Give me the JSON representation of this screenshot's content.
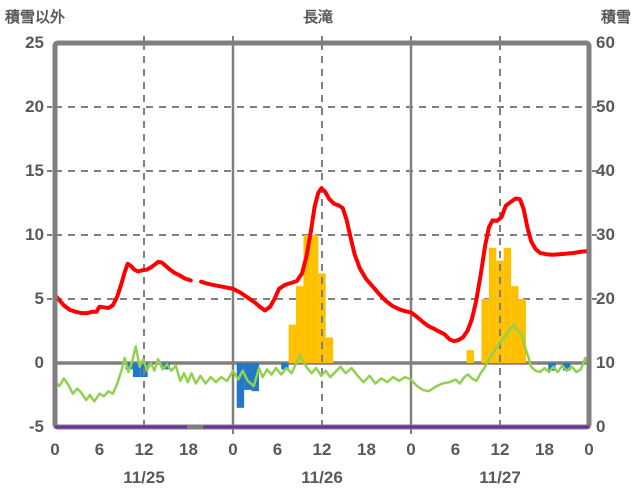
{
  "header": {
    "left_axis_title": "積雪以外",
    "title": "長滝",
    "right_axis_title": "積雪"
  },
  "colors": {
    "axis_text": "#595959",
    "grid": "#808080",
    "border": "#7F7F7F",
    "red": "#FF0000",
    "green": "#92D050",
    "orange": "#FFC000",
    "blue": "#1F78C8",
    "purple": "#7030A0"
  },
  "chart_data": {
    "type": "combo",
    "title": "長滝",
    "left_axis": {
      "label": "積雪以外",
      "min": -5,
      "max": 25,
      "ticks": [
        25,
        20,
        15,
        10,
        5,
        0,
        -5
      ]
    },
    "right_axis": {
      "label": "積雪",
      "min": 0,
      "max": 60,
      "ticks": [
        60,
        50,
        40,
        30,
        20,
        10,
        0
      ]
    },
    "x_axis": {
      "total_hours": 72,
      "tick_hours": [
        0,
        6,
        12,
        18,
        24,
        30,
        36,
        42,
        48,
        54,
        60,
        66,
        72
      ],
      "tick_labels": [
        "0",
        "6",
        "12",
        "18",
        "0",
        "6",
        "12",
        "18",
        "0",
        "6",
        "12",
        "18",
        "0"
      ],
      "day_labels": [
        {
          "label": "11/25",
          "center_hour": 12
        },
        {
          "label": "11/26",
          "center_hour": 36
        },
        {
          "label": "11/27",
          "center_hour": 60
        }
      ],
      "solid_vertical_hours": [
        24,
        48
      ],
      "dashed_vertical_hours": [
        12,
        36,
        60
      ]
    },
    "grid": {
      "dashed_left_values": [
        20,
        15,
        10,
        5
      ],
      "zero_line_left_value": 0
    },
    "series": [
      {
        "name": "orange-bars",
        "type": "bar",
        "axis": "left",
        "color": "#FFC000",
        "bar_width_hours": 1,
        "points": [
          [
            32,
            3
          ],
          [
            33,
            6
          ],
          [
            34,
            10
          ],
          [
            35,
            10
          ],
          [
            36,
            7
          ],
          [
            37,
            2
          ],
          [
            56,
            1
          ],
          [
            58,
            5
          ],
          [
            59,
            9
          ],
          [
            60,
            8
          ],
          [
            61,
            9
          ],
          [
            62,
            6
          ],
          [
            63,
            5
          ]
        ]
      },
      {
        "name": "blue-bars",
        "type": "bar",
        "axis": "left",
        "color": "#1F78C8",
        "bar_width_hours": 1,
        "points": [
          [
            10,
            -0.5
          ],
          [
            11,
            -1.1
          ],
          [
            12,
            -1.1
          ],
          [
            15,
            -0.5
          ],
          [
            25,
            -3.5
          ],
          [
            26,
            -2.1
          ],
          [
            27,
            -2.2
          ],
          [
            31,
            -0.5
          ],
          [
            67,
            -0.6
          ],
          [
            69,
            -0.6
          ]
        ]
      },
      {
        "name": "purple-line",
        "type": "line",
        "axis": "right",
        "color": "#7030A0",
        "width": 3,
        "segments": [
          [
            [
              0,
              0
            ],
            [
              17.8,
              0
            ]
          ],
          [
            [
              20,
              0
            ],
            [
              72,
              0
            ]
          ]
        ]
      },
      {
        "name": "green-line",
        "type": "line",
        "axis": "left",
        "color": "#92D050",
        "width": 2.5,
        "segments": [
          [
            [
              0,
              -1.5
            ],
            [
              0.6,
              -1.8
            ],
            [
              1.2,
              -1.2
            ],
            [
              1.8,
              -1.7
            ],
            [
              2.4,
              -2.4
            ],
            [
              3,
              -2.0
            ],
            [
              3.5,
              -2.3
            ],
            [
              4.2,
              -2.9
            ],
            [
              4.7,
              -2.5
            ],
            [
              5.3,
              -3.0
            ],
            [
              6,
              -2.4
            ],
            [
              6.6,
              -2.6
            ],
            [
              7.2,
              -2.2
            ],
            [
              7.8,
              -2.4
            ],
            [
              8.4,
              -1.6
            ],
            [
              9,
              -0.5
            ],
            [
              9.4,
              0.4
            ],
            [
              9.9,
              -0.7
            ],
            [
              10.4,
              0.1
            ],
            [
              10.9,
              1.3
            ],
            [
              11.4,
              -0.3
            ],
            [
              11.9,
              0.3
            ],
            [
              12.4,
              -0.6
            ],
            [
              12.9,
              0.0
            ],
            [
              13.4,
              -0.6
            ],
            [
              13.9,
              0.3
            ],
            [
              14.5,
              -0.5
            ],
            [
              15.1,
              -0.1
            ],
            [
              15.7,
              -0.6
            ],
            [
              16.3,
              -0.2
            ],
            [
              16.9,
              -1.4
            ],
            [
              17.4,
              -0.8
            ],
            [
              17.9,
              -1.5
            ],
            [
              18.4,
              -0.8
            ],
            [
              19,
              -1.6
            ],
            [
              19.6,
              -1.0
            ],
            [
              20.3,
              -1.6
            ],
            [
              21,
              -1.1
            ],
            [
              21.7,
              -1.5
            ],
            [
              22.4,
              -1.1
            ],
            [
              23.2,
              -1.4
            ],
            [
              24,
              -0.6
            ],
            [
              24.7,
              -1.3
            ],
            [
              25.3,
              -0.6
            ],
            [
              26,
              -1.4
            ],
            [
              26.8,
              -1.8
            ],
            [
              27.5,
              -0.4
            ],
            [
              28,
              -1.1
            ],
            [
              28.6,
              -0.5
            ],
            [
              29.2,
              -0.9
            ],
            [
              29.8,
              -0.4
            ],
            [
              30.5,
              -0.9
            ],
            [
              31.2,
              -0.4
            ],
            [
              31.9,
              -0.8
            ],
            [
              32.7,
              0.2
            ],
            [
              33,
              0.6
            ],
            [
              33.5,
              0.1
            ],
            [
              34,
              -0.4
            ],
            [
              34.6,
              -0.8
            ],
            [
              35.2,
              -0.4
            ],
            [
              35.9,
              -1.0
            ],
            [
              36.5,
              -0.6
            ],
            [
              37.1,
              -1.1
            ],
            [
              37.8,
              -0.7
            ],
            [
              38.5,
              -0.3
            ],
            [
              39.2,
              -0.8
            ],
            [
              40,
              -0.4
            ],
            [
              40.8,
              -1.0
            ],
            [
              41.6,
              -1.5
            ],
            [
              42.4,
              -1.0
            ],
            [
              43.2,
              -1.6
            ],
            [
              44,
              -1.2
            ],
            [
              44.8,
              -1.5
            ],
            [
              45.6,
              -1.1
            ],
            [
              46.4,
              -1.4
            ],
            [
              47.2,
              -1.1
            ],
            [
              48,
              -1.3
            ],
            [
              48.8,
              -1.8
            ],
            [
              49.6,
              -2.1
            ],
            [
              50.4,
              -2.2
            ],
            [
              51.2,
              -1.9
            ],
            [
              52.2,
              -1.6
            ],
            [
              53.2,
              -1.5
            ],
            [
              54,
              -1.3
            ],
            [
              54.6,
              -1.6
            ],
            [
              55.2,
              -1.1
            ],
            [
              55.7,
              -0.9
            ],
            [
              56.2,
              -1.2
            ],
            [
              56.8,
              -1.4
            ],
            [
              57.4,
              -0.8
            ],
            [
              58,
              -0.3
            ],
            [
              58.6,
              0.4
            ],
            [
              59.3,
              1.0
            ],
            [
              60,
              1.6
            ],
            [
              60.7,
              2.1
            ],
            [
              61.3,
              2.6
            ],
            [
              61.9,
              3.0
            ],
            [
              62.4,
              2.5
            ],
            [
              62.9,
              2.3
            ],
            [
              63.4,
              1.2
            ],
            [
              63.8,
              0.5
            ],
            [
              64.2,
              -0.3
            ],
            [
              64.8,
              -0.6
            ],
            [
              65.4,
              -0.7
            ],
            [
              66,
              -0.4
            ],
            [
              66.6,
              -0.7
            ],
            [
              67.2,
              -0.3
            ],
            [
              67.8,
              -0.7
            ],
            [
              68.4,
              -0.2
            ],
            [
              69,
              -0.6
            ],
            [
              69.7,
              -0.3
            ],
            [
              70.3,
              -0.7
            ],
            [
              70.9,
              -0.5
            ],
            [
              71.5,
              0.4
            ],
            [
              72,
              -0.4
            ]
          ]
        ]
      },
      {
        "name": "red-line",
        "type": "line",
        "axis": "left",
        "color": "#FF0000",
        "width": 4,
        "segments": [
          [
            [
              0,
              5.3
            ],
            [
              0.6,
              4.9
            ],
            [
              1.2,
              4.5
            ],
            [
              2,
              4.15
            ],
            [
              2.8,
              4.0
            ],
            [
              3.6,
              3.9
            ],
            [
              4.4,
              3.9
            ],
            [
              5,
              4.0
            ],
            [
              5.6,
              4.0
            ],
            [
              6,
              4.4
            ],
            [
              6.6,
              4.35
            ],
            [
              7.2,
              4.3
            ],
            [
              7.8,
              4.5
            ],
            [
              8.4,
              5.2
            ],
            [
              9,
              6.3
            ],
            [
              9.4,
              7.1
            ],
            [
              9.8,
              7.75
            ],
            [
              10.2,
              7.6
            ],
            [
              10.7,
              7.3
            ],
            [
              11.2,
              7.15
            ],
            [
              11.8,
              7.25
            ],
            [
              12.4,
              7.3
            ],
            [
              13,
              7.5
            ],
            [
              13.5,
              7.7
            ],
            [
              13.9,
              7.9
            ],
            [
              14.4,
              7.85
            ],
            [
              14.9,
              7.6
            ],
            [
              15.5,
              7.3
            ],
            [
              16.1,
              7.05
            ],
            [
              16.8,
              6.85
            ],
            [
              17.5,
              6.6
            ],
            [
              18.3,
              6.45
            ]
          ],
          [
            [
              19.7,
              6.35
            ],
            [
              20.5,
              6.2
            ],
            [
              21.3,
              6.1
            ],
            [
              22.2,
              6.0
            ],
            [
              23.1,
              5.9
            ],
            [
              24,
              5.8
            ],
            [
              25,
              5.5
            ],
            [
              26,
              5.1
            ],
            [
              27,
              4.7
            ],
            [
              27.7,
              4.35
            ],
            [
              28.3,
              4.1
            ],
            [
              29,
              4.4
            ],
            [
              29.6,
              5.0
            ],
            [
              30.2,
              5.8
            ],
            [
              31,
              6.1
            ],
            [
              31.8,
              6.25
            ],
            [
              32.6,
              6.4
            ],
            [
              33.3,
              7.0
            ],
            [
              33.9,
              8.3
            ],
            [
              34.5,
              10.3
            ],
            [
              35,
              12.2
            ],
            [
              35.5,
              13.3
            ],
            [
              35.9,
              13.65
            ],
            [
              36.4,
              13.4
            ],
            [
              37,
              12.8
            ],
            [
              37.6,
              12.45
            ],
            [
              38.3,
              12.3
            ],
            [
              38.8,
              12.1
            ],
            [
              39.3,
              11.2
            ],
            [
              39.9,
              9.7
            ],
            [
              40.4,
              8.5
            ],
            [
              41.1,
              7.4
            ],
            [
              41.9,
              6.6
            ],
            [
              42.8,
              6.0
            ],
            [
              43.7,
              5.4
            ],
            [
              44.6,
              4.85
            ],
            [
              45.5,
              4.45
            ],
            [
              46.4,
              4.2
            ],
            [
              47.2,
              4.05
            ],
            [
              48,
              3.95
            ],
            [
              48.8,
              3.6
            ],
            [
              49.6,
              3.2
            ],
            [
              50.3,
              2.9
            ],
            [
              51,
              2.7
            ],
            [
              51.8,
              2.45
            ],
            [
              52.5,
              2.25
            ],
            [
              53.2,
              1.85
            ],
            [
              53.8,
              1.7
            ],
            [
              54.4,
              1.8
            ],
            [
              55,
              2.0
            ],
            [
              55.6,
              2.5
            ],
            [
              56.2,
              3.4
            ],
            [
              56.8,
              4.9
            ],
            [
              57.4,
              6.9
            ],
            [
              58,
              9.2
            ],
            [
              58.5,
              10.6
            ],
            [
              59,
              11.15
            ],
            [
              59.6,
              11.1
            ],
            [
              60.2,
              11.4
            ],
            [
              60.8,
              12.3
            ],
            [
              61.5,
              12.6
            ],
            [
              62.1,
              12.85
            ],
            [
              62.7,
              12.8
            ],
            [
              63.2,
              12.0
            ],
            [
              63.7,
              10.6
            ],
            [
              64.2,
              9.5
            ],
            [
              64.8,
              8.9
            ],
            [
              65.4,
              8.6
            ],
            [
              66.2,
              8.5
            ],
            [
              67.1,
              8.45
            ],
            [
              68,
              8.5
            ],
            [
              69,
              8.55
            ],
            [
              70,
              8.6
            ],
            [
              71,
              8.7
            ],
            [
              72,
              8.75
            ]
          ]
        ]
      }
    ]
  }
}
